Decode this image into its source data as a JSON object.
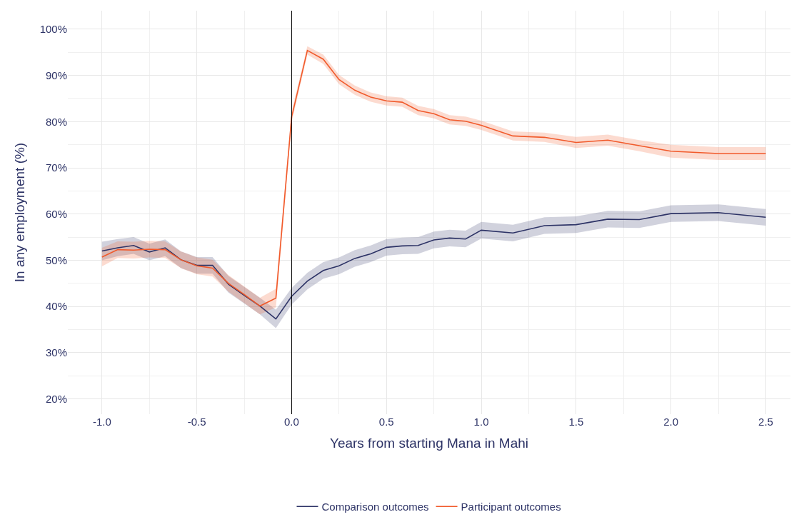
{
  "chart_data": {
    "type": "line",
    "xlabel": "Years from starting Mana in Mahi",
    "ylabel": "In any employment (%)",
    "x": [
      -1.0,
      -0.917,
      -0.833,
      -0.75,
      -0.667,
      -0.583,
      -0.5,
      -0.417,
      -0.333,
      -0.25,
      -0.167,
      -0.083,
      0.0,
      0.083,
      0.167,
      0.25,
      0.333,
      0.417,
      0.5,
      0.583,
      0.667,
      0.75,
      0.833,
      0.917,
      1.0,
      1.167,
      1.333,
      1.5,
      1.667,
      1.833,
      2.0,
      2.25,
      2.5
    ],
    "series": [
      {
        "name": "Comparison outcomes",
        "color": "#2d3366",
        "values": [
          52.0,
          52.7,
          53.2,
          51.8,
          52.7,
          50.1,
          48.9,
          48.9,
          44.8,
          42.4,
          40.1,
          37.3,
          42.2,
          45.5,
          47.8,
          48.8,
          50.4,
          51.4,
          52.8,
          53.1,
          53.2,
          54.4,
          54.8,
          54.6,
          56.5,
          55.9,
          57.5,
          57.7,
          58.9,
          58.8,
          60.1,
          60.3,
          59.3
        ],
        "lower": [
          50.0,
          50.9,
          51.4,
          50.0,
          50.9,
          48.3,
          47.1,
          47.1,
          43.0,
          40.7,
          38.3,
          35.3,
          40.4,
          43.7,
          46.0,
          47.0,
          48.6,
          49.6,
          51.0,
          51.3,
          51.4,
          52.6,
          53.0,
          52.8,
          54.7,
          54.1,
          55.7,
          55.9,
          57.1,
          57.0,
          58.3,
          58.5,
          57.5
        ],
        "upper": [
          54.0,
          54.6,
          55.0,
          53.6,
          54.5,
          51.9,
          50.7,
          50.7,
          46.6,
          44.2,
          41.9,
          39.3,
          44.0,
          47.3,
          49.6,
          50.6,
          52.2,
          53.2,
          54.6,
          54.9,
          55.0,
          56.2,
          56.6,
          56.4,
          58.3,
          57.7,
          59.3,
          59.5,
          60.7,
          60.6,
          61.9,
          62.1,
          61.1
        ]
      },
      {
        "name": "Participant outcomes",
        "color": "#f15a2b",
        "values": [
          50.7,
          52.3,
          52.2,
          52.4,
          52.3,
          50.1,
          48.8,
          48.3,
          45.0,
          42.6,
          40.1,
          41.8,
          81.0,
          95.4,
          93.5,
          89.1,
          86.8,
          85.3,
          84.5,
          84.2,
          82.4,
          81.7,
          80.4,
          80.1,
          79.2,
          76.9,
          76.6,
          75.5,
          76.0,
          74.8,
          73.6,
          73.1,
          73.1
        ],
        "lower": [
          48.7,
          50.5,
          50.4,
          50.6,
          50.5,
          48.3,
          47.0,
          46.5,
          43.2,
          40.8,
          38.3,
          39.8,
          79.8,
          94.5,
          92.5,
          88.1,
          85.8,
          84.3,
          83.5,
          83.2,
          81.4,
          80.7,
          79.4,
          79.1,
          78.2,
          75.9,
          75.6,
          74.3,
          74.8,
          73.6,
          72.2,
          71.7,
          71.7
        ],
        "upper": [
          52.7,
          54.1,
          54.0,
          54.2,
          54.1,
          51.9,
          50.6,
          50.1,
          46.8,
          44.4,
          41.9,
          43.8,
          82.2,
          96.3,
          94.5,
          90.1,
          87.8,
          86.3,
          85.5,
          85.2,
          83.4,
          82.7,
          81.4,
          81.1,
          80.2,
          77.9,
          77.6,
          76.7,
          77.2,
          76.0,
          75.0,
          74.5,
          74.5
        ]
      }
    ],
    "xlim": [
      -1.18,
      2.63
    ],
    "xticks": [
      {
        "value": -1.0,
        "label": "-1.0"
      },
      {
        "value": -0.5,
        "label": "-0.5"
      },
      {
        "value": 0.0,
        "label": "0.0"
      },
      {
        "value": 0.5,
        "label": "0.5"
      },
      {
        "value": 1.0,
        "label": "1.0"
      },
      {
        "value": 1.5,
        "label": "1.5"
      },
      {
        "value": 2.0,
        "label": "2.0"
      },
      {
        "value": 2.5,
        "label": "2.5"
      }
    ],
    "ylim": [
      16.7,
      104
    ],
    "yticks": [
      {
        "value": 20,
        "label": "20%"
      },
      {
        "value": 30,
        "label": "30%"
      },
      {
        "value": 40,
        "label": "40%"
      },
      {
        "value": 50,
        "label": "50%"
      },
      {
        "value": 60,
        "label": "60%"
      },
      {
        "value": 70,
        "label": "70%"
      },
      {
        "value": 80,
        "label": "80%"
      },
      {
        "value": 90,
        "label": "90%"
      },
      {
        "value": 100,
        "label": "100%"
      }
    ],
    "ref_lines": [
      {
        "axis": "x",
        "value": 0.0,
        "label": null,
        "color": "#000000"
      }
    ],
    "grid": true,
    "legend": "bottom",
    "marker": "none",
    "line_style": "solid"
  }
}
